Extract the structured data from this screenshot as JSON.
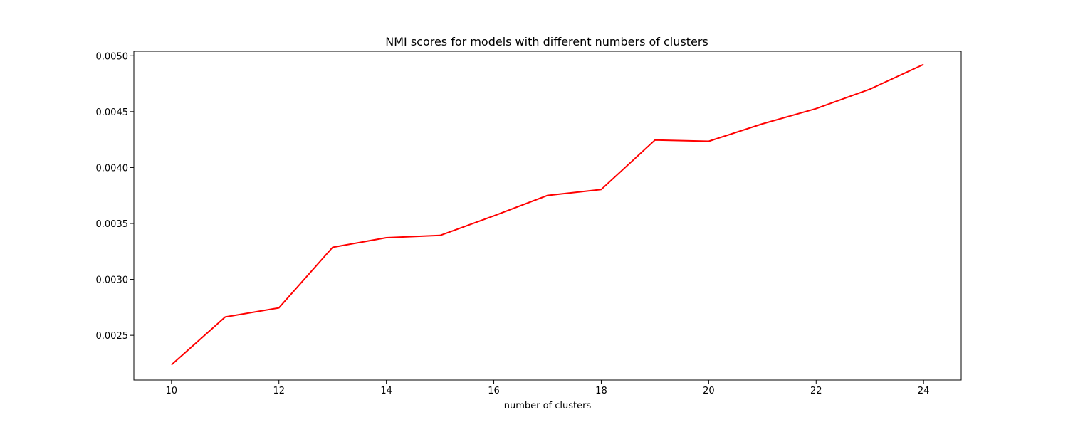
{
  "chart_data": {
    "type": "line",
    "title": "NMI scores for models with different numbers of clusters",
    "xlabel": "number of clusters",
    "ylabel": "",
    "xlim": [
      9.3,
      24.7
    ],
    "ylim": [
      0.0021,
      0.00504
    ],
    "xticks": [
      10,
      12,
      14,
      16,
      18,
      20,
      22,
      24
    ],
    "xtick_labels": [
      "10",
      "12",
      "14",
      "16",
      "18",
      "20",
      "22",
      "24"
    ],
    "yticks": [
      0.0025,
      0.003,
      0.0035,
      0.004,
      0.0045,
      0.005
    ],
    "ytick_labels": [
      "0.0025",
      "0.0030",
      "0.0035",
      "0.0040",
      "0.0045",
      "0.0050"
    ],
    "grid": false,
    "legend": "none",
    "series": [
      {
        "color": "#ff0000",
        "x": [
          10,
          11,
          12,
          13,
          14,
          15,
          16,
          17,
          18,
          19,
          20,
          21,
          22,
          23,
          24
        ],
        "values": [
          0.002236,
          0.002664,
          0.002745,
          0.003287,
          0.003373,
          0.003393,
          0.003568,
          0.003751,
          0.003804,
          0.004246,
          0.004235,
          0.004391,
          0.004527,
          0.004701,
          0.004922
        ]
      }
    ]
  }
}
